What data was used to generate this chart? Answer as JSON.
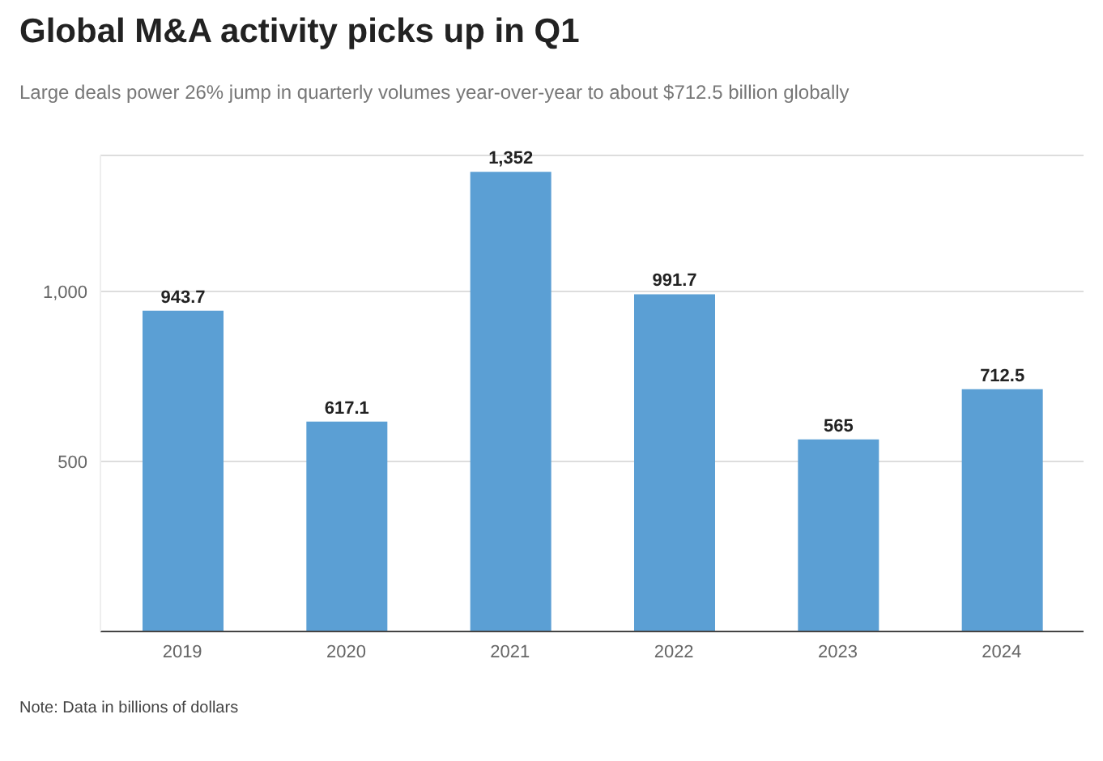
{
  "chart_data": {
    "type": "bar",
    "title": "Global M&A activity picks up in Q1",
    "subtitle": "Large deals power 26% jump in quarterly volumes year-over-year to about $712.5 billion globally",
    "categories": [
      "2019",
      "2020",
      "2021",
      "2022",
      "2023",
      "2024"
    ],
    "values": [
      943.7,
      617.1,
      1352,
      991.7,
      565,
      712.5
    ],
    "value_labels": [
      "943.7",
      "617.1",
      "1,352",
      "991.7",
      "565",
      "712.5"
    ],
    "color": "#5b9fd4",
    "ylim": [
      0,
      1400
    ],
    "yticks": [
      {
        "value": 0,
        "label": null
      },
      500,
      {
        "value": 1000,
        "label": "1,000"
      }
    ],
    "grid": "y",
    "legend": false,
    "annotations": [
      "Note: Data in billions of dollars"
    ]
  }
}
